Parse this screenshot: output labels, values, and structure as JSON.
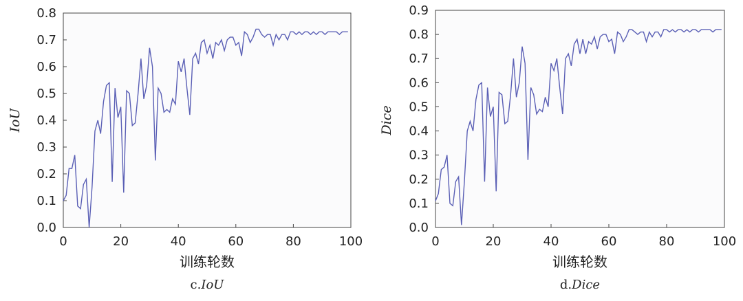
{
  "chart_data": [
    {
      "type": "line",
      "caption_prefix": "c.",
      "caption_name": "IoU",
      "xlabel": "训练轮数",
      "ylabel": "IoU",
      "xlim": [
        0,
        100
      ],
      "ylim": [
        0,
        0.8
      ],
      "xticks": [
        "0",
        "20",
        "40",
        "60",
        "80",
        "100"
      ],
      "yticks": [
        "0.0",
        "0.1",
        "0.2",
        "0.3",
        "0.4",
        "0.5",
        "0.6",
        "0.7",
        "0.8"
      ],
      "grid": false,
      "line_color": "#5a5fb5",
      "series": [
        {
          "x": [
            0,
            1,
            2,
            3,
            4,
            5,
            6,
            7,
            8,
            9,
            10,
            11,
            12,
            13,
            14,
            15,
            16,
            17,
            18,
            19,
            20,
            21,
            22,
            23,
            24,
            25,
            26,
            27,
            28,
            29,
            30,
            31,
            32,
            33,
            34,
            35,
            36,
            37,
            38,
            39,
            40,
            41,
            42,
            43,
            44,
            45,
            46,
            47,
            48,
            49,
            50,
            51,
            52,
            53,
            54,
            55,
            56,
            57,
            58,
            59,
            60,
            61,
            62,
            63,
            64,
            65,
            66,
            67,
            68,
            69,
            70,
            71,
            72,
            73,
            74,
            75,
            76,
            77,
            78,
            79,
            80,
            81,
            82,
            83,
            84,
            85,
            86,
            87,
            88,
            89,
            90,
            91,
            92,
            93,
            94,
            95,
            96,
            97,
            98,
            99
          ],
          "values": [
            0.1,
            0.12,
            0.22,
            0.22,
            0.27,
            0.08,
            0.07,
            0.16,
            0.18,
            0.0,
            0.15,
            0.36,
            0.4,
            0.35,
            0.47,
            0.53,
            0.54,
            0.17,
            0.52,
            0.41,
            0.45,
            0.13,
            0.51,
            0.5,
            0.38,
            0.39,
            0.5,
            0.63,
            0.48,
            0.53,
            0.67,
            0.6,
            0.25,
            0.52,
            0.5,
            0.43,
            0.44,
            0.43,
            0.48,
            0.46,
            0.62,
            0.58,
            0.63,
            0.52,
            0.42,
            0.63,
            0.65,
            0.61,
            0.69,
            0.7,
            0.65,
            0.68,
            0.63,
            0.69,
            0.68,
            0.7,
            0.66,
            0.7,
            0.71,
            0.71,
            0.68,
            0.69,
            0.64,
            0.73,
            0.72,
            0.69,
            0.71,
            0.74,
            0.74,
            0.72,
            0.71,
            0.72,
            0.72,
            0.68,
            0.72,
            0.7,
            0.72,
            0.72,
            0.7,
            0.73,
            0.73,
            0.72,
            0.73,
            0.72,
            0.73,
            0.73,
            0.72,
            0.73,
            0.72,
            0.73,
            0.73,
            0.72,
            0.73,
            0.73,
            0.73,
            0.73,
            0.72,
            0.73,
            0.73,
            0.73
          ]
        }
      ]
    },
    {
      "type": "line",
      "caption_prefix": "d.",
      "caption_name": "Dice",
      "xlabel": "训练轮数",
      "ylabel": "Dice",
      "xlim": [
        0,
        100
      ],
      "ylim": [
        0,
        0.9
      ],
      "xticks": [
        "0",
        "20",
        "40",
        "60",
        "80",
        "100"
      ],
      "yticks": [
        "0.0",
        "0.1",
        "0.2",
        "0.3",
        "0.4",
        "0.5",
        "0.6",
        "0.7",
        "0.8",
        "0.9"
      ],
      "grid": false,
      "line_color": "#5a5fb5",
      "series": [
        {
          "x": [
            0,
            1,
            2,
            3,
            4,
            5,
            6,
            7,
            8,
            9,
            10,
            11,
            12,
            13,
            14,
            15,
            16,
            17,
            18,
            19,
            20,
            21,
            22,
            23,
            24,
            25,
            26,
            27,
            28,
            29,
            30,
            31,
            32,
            33,
            34,
            35,
            36,
            37,
            38,
            39,
            40,
            41,
            42,
            43,
            44,
            45,
            46,
            47,
            48,
            49,
            50,
            51,
            52,
            53,
            54,
            55,
            56,
            57,
            58,
            59,
            60,
            61,
            62,
            63,
            64,
            65,
            66,
            67,
            68,
            69,
            70,
            71,
            72,
            73,
            74,
            75,
            76,
            77,
            78,
            79,
            80,
            81,
            82,
            83,
            84,
            85,
            86,
            87,
            88,
            89,
            90,
            91,
            92,
            93,
            94,
            95,
            96,
            97,
            98,
            99
          ],
          "values": [
            0.11,
            0.14,
            0.24,
            0.25,
            0.3,
            0.1,
            0.09,
            0.19,
            0.21,
            0.01,
            0.19,
            0.4,
            0.44,
            0.4,
            0.53,
            0.59,
            0.6,
            0.19,
            0.58,
            0.46,
            0.5,
            0.15,
            0.56,
            0.55,
            0.43,
            0.44,
            0.55,
            0.7,
            0.54,
            0.6,
            0.75,
            0.68,
            0.28,
            0.58,
            0.55,
            0.47,
            0.49,
            0.48,
            0.54,
            0.5,
            0.68,
            0.65,
            0.7,
            0.58,
            0.47,
            0.7,
            0.72,
            0.67,
            0.76,
            0.78,
            0.72,
            0.78,
            0.72,
            0.77,
            0.76,
            0.79,
            0.74,
            0.79,
            0.8,
            0.8,
            0.77,
            0.78,
            0.72,
            0.81,
            0.8,
            0.77,
            0.79,
            0.82,
            0.82,
            0.81,
            0.8,
            0.81,
            0.81,
            0.77,
            0.81,
            0.79,
            0.81,
            0.81,
            0.79,
            0.82,
            0.82,
            0.81,
            0.82,
            0.81,
            0.82,
            0.82,
            0.81,
            0.82,
            0.81,
            0.82,
            0.82,
            0.81,
            0.82,
            0.82,
            0.82,
            0.82,
            0.81,
            0.82,
            0.82,
            0.82
          ]
        }
      ]
    }
  ]
}
